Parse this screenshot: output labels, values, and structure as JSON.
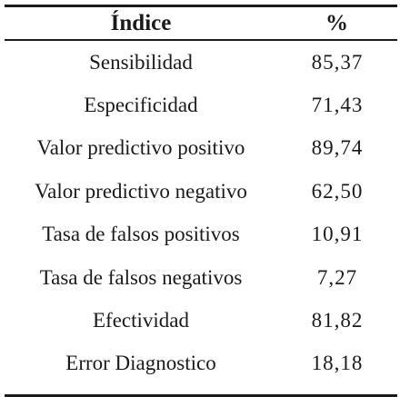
{
  "table": {
    "headers": {
      "index": "Índice",
      "value": "%"
    },
    "rows": [
      {
        "label": "Sensibilidad",
        "value": "85,37"
      },
      {
        "label": "Especificidad",
        "value": "71,43"
      },
      {
        "label": "Valor predictivo positivo",
        "value": "89,74"
      },
      {
        "label": "Valor predictivo negativo",
        "value": "62,50"
      },
      {
        "label": "Tasa de falsos positivos",
        "value": "10,91"
      },
      {
        "label": "Tasa de falsos negativos",
        "value": "7,27"
      },
      {
        "label": "Efectividad",
        "value": "81,82"
      },
      {
        "label": "Error Diagnostico",
        "value": "18,18"
      }
    ]
  }
}
